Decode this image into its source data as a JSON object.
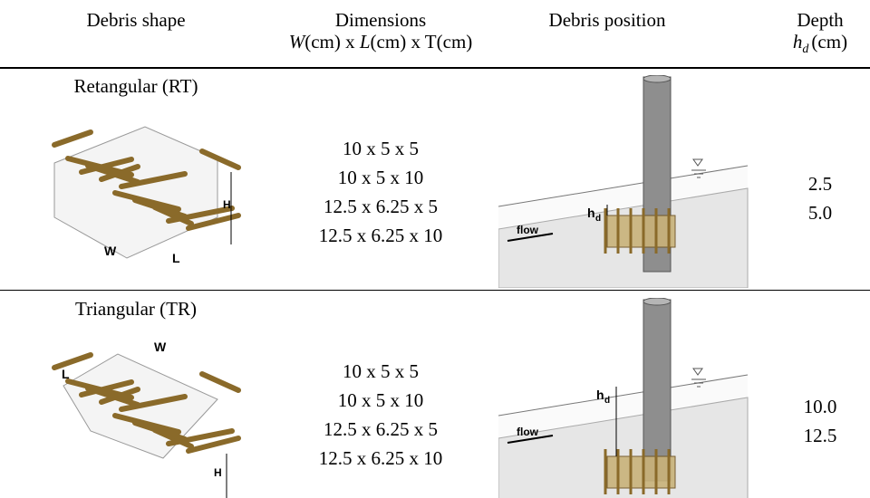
{
  "header": {
    "shape": "Debris shape",
    "dimensions": {
      "line1": "Dimensions",
      "line2": [
        "W",
        "(cm) x ",
        "L",
        "(cm) x T(cm)"
      ]
    },
    "position": "Debris position",
    "depth": {
      "line1": "Depth",
      "symbol": "h",
      "subscript": "d",
      "unit": "(cm)"
    }
  },
  "rows": [
    {
      "shape": "Retangular (RT)",
      "shape_labels": {
        "w": "W",
        "l": "L",
        "h": "H"
      },
      "dimensions": [
        "10 x 5 x 5",
        "10 x 5 x 10",
        "12.5 x 6.25 x 5",
        "12.5 x 6.25 x 10"
      ],
      "position_labels": {
        "flow": "flow",
        "symbol": "h",
        "subscript": "d"
      },
      "depths": [
        "2.5",
        "5.0"
      ]
    },
    {
      "shape": "Triangular (TR)",
      "shape_labels": {
        "w": "W",
        "l": "L",
        "h": "H"
      },
      "dimensions": [
        "10 x 5 x 5",
        "10 x 5 x 10",
        "12.5 x 6.25 x 5",
        "12.5 x 6.25 x 10"
      ],
      "position_labels": {
        "flow": "flow",
        "symbol": "h",
        "subscript": "d"
      },
      "depths": [
        "10.0",
        "12.5"
      ]
    }
  ]
}
